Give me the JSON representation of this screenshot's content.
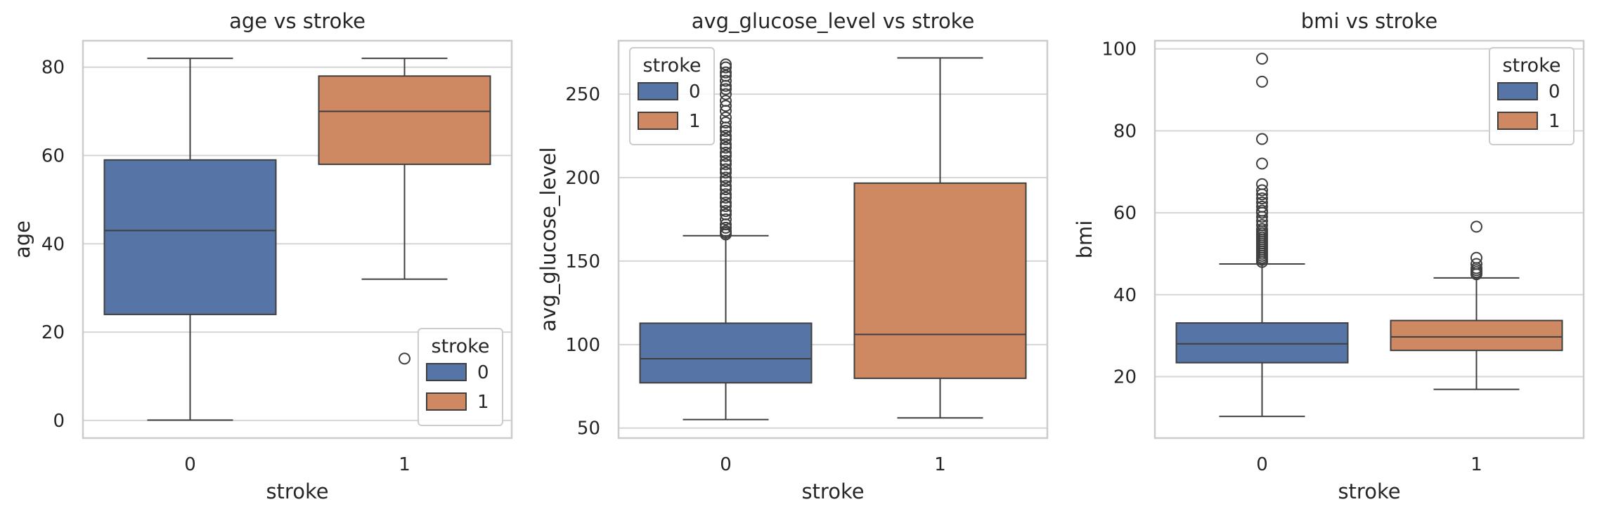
{
  "chart_data": [
    {
      "type": "box",
      "title": "age vs stroke",
      "xlabel": "stroke",
      "ylabel": "age",
      "categories": [
        "0",
        "1"
      ],
      "ylim": [
        -4,
        86
      ],
      "yticks": [
        0,
        20,
        40,
        60,
        80
      ],
      "grid": true,
      "legend": {
        "title": "stroke",
        "placement": "lower-right",
        "entries": [
          "0",
          "1"
        ]
      },
      "boxes": [
        {
          "hue": "0",
          "whisker_low": 0.08,
          "q1": 24,
          "median": 43,
          "q3": 59,
          "whisker_high": 82,
          "outliers": []
        },
        {
          "hue": "1",
          "whisker_low": 32,
          "q1": 58,
          "median": 70,
          "q3": 78,
          "whisker_high": 82,
          "outliers": [
            14
          ]
        }
      ]
    },
    {
      "type": "box",
      "title": "avg_glucose_level vs stroke",
      "xlabel": "stroke",
      "ylabel": "avg_glucose_level",
      "categories": [
        "0",
        "1"
      ],
      "ylim": [
        44,
        282
      ],
      "yticks": [
        50,
        100,
        150,
        200,
        250
      ],
      "grid": true,
      "legend": {
        "title": "stroke",
        "placement": "upper-left",
        "entries": [
          "0",
          "1"
        ]
      },
      "boxes": [
        {
          "hue": "0",
          "whisker_low": 55.1,
          "q1": 77.1,
          "median": 91.5,
          "q3": 112.8,
          "whisker_high": 165.2,
          "outliers": [
            166,
            167,
            168,
            170,
            172,
            175,
            178,
            180,
            183,
            185,
            188,
            190,
            193,
            195,
            198,
            200,
            203,
            205,
            208,
            210,
            213,
            215,
            218,
            220,
            223,
            225,
            228,
            230,
            233,
            236,
            240,
            243,
            246,
            250,
            253,
            255,
            258,
            261,
            263,
            266,
            267.8
          ]
        },
        {
          "hue": "1",
          "whisker_low": 56.1,
          "q1": 79.8,
          "median": 106.1,
          "q3": 196.7,
          "whisker_high": 271.7,
          "outliers": []
        }
      ]
    },
    {
      "type": "box",
      "title": "bmi vs stroke",
      "xlabel": "stroke",
      "ylabel": "bmi",
      "categories": [
        "0",
        "1"
      ],
      "ylim": [
        5,
        102
      ],
      "yticks": [
        20,
        40,
        60,
        80,
        100
      ],
      "grid": true,
      "legend": {
        "title": "stroke",
        "placement": "upper-right",
        "entries": [
          "0",
          "1"
        ]
      },
      "boxes": [
        {
          "hue": "0",
          "whisker_low": 10.3,
          "q1": 23.4,
          "median": 28.0,
          "q3": 33.1,
          "whisker_high": 47.5,
          "outliers": [
            48,
            48.5,
            49,
            49.5,
            50,
            50.5,
            51,
            51.5,
            52,
            52.5,
            53,
            53.5,
            54,
            54.5,
            55,
            55.5,
            56,
            57,
            58,
            59,
            60,
            60.5,
            61.5,
            62.5,
            63.5,
            64.5,
            65.5,
            67,
            72,
            78,
            92,
            97.6
          ]
        },
        {
          "hue": "1",
          "whisker_low": 16.9,
          "q1": 26.4,
          "median": 29.7,
          "q3": 33.7,
          "whisker_high": 44.1,
          "outliers": [
            45,
            45.5,
            46,
            46.5,
            47.5,
            49,
            56.6
          ]
        }
      ]
    }
  ],
  "colors": {
    "0": "#5774a6",
    "1": "#ce8862",
    "line": "#3f3f3f",
    "grid": "#d5d5d5",
    "frame": "#cccccc"
  }
}
